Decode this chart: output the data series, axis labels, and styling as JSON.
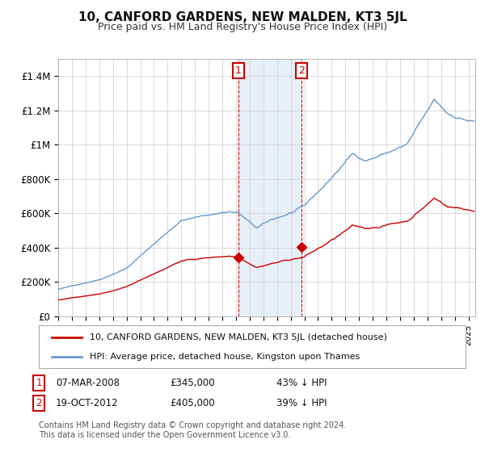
{
  "title": "10, CANFORD GARDENS, NEW MALDEN, KT3 5JL",
  "subtitle": "Price paid vs. HM Land Registry's House Price Index (HPI)",
  "ylabel_ticks": [
    "£0",
    "£200K",
    "£400K",
    "£600K",
    "£800K",
    "£1M",
    "£1.2M",
    "£1.4M"
  ],
  "ytick_values": [
    0,
    200000,
    400000,
    600000,
    800000,
    1000000,
    1200000,
    1400000
  ],
  "ylim": [
    0,
    1500000
  ],
  "xlim_start": 1995.0,
  "xlim_end": 2025.5,
  "hpi_color": "#6699cc",
  "price_color": "#cc0000",
  "purchase1_date": 2008.17,
  "purchase1_price": 345000,
  "purchase2_date": 2012.79,
  "purchase2_price": 405000,
  "shade_x1": 2008.17,
  "shade_x2": 2012.79,
  "legend_line1": "10, CANFORD GARDENS, NEW MALDEN, KT3 5JL (detached house)",
  "legend_line2": "HPI: Average price, detached house, Kingston upon Thames",
  "footnote": "Contains HM Land Registry data © Crown copyright and database right 2024.\nThis data is licensed under the Open Government Licence v3.0.",
  "background_color": "#ffffff",
  "grid_color": "#cccccc"
}
